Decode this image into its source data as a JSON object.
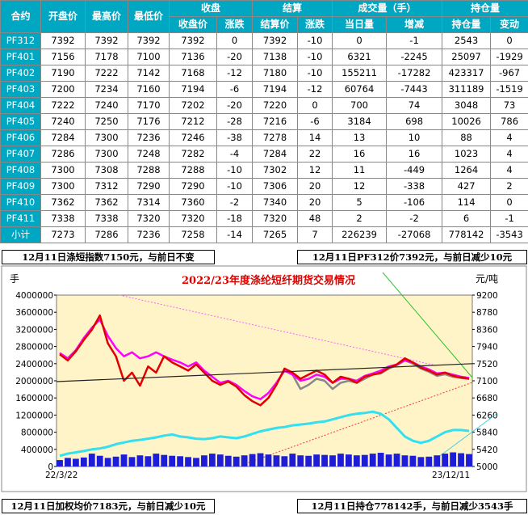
{
  "table": {
    "headers_top": [
      "合约",
      "开盘价",
      "最高价",
      "最低价",
      "收盘",
      "结算",
      "成交量（手）",
      "持仓量"
    ],
    "headers_sub": [
      "收盘价",
      "涨跌",
      "结算价",
      "涨跌",
      "当日量",
      "增减",
      "持仓量",
      "变动"
    ],
    "rows": [
      {
        "c": "PF312",
        "open": "7392",
        "high": "7392",
        "low": "7392",
        "close": "7392",
        "cchg": "0",
        "settle": "7392",
        "schg": "-10",
        "vol": "0",
        "vchg": "-1",
        "oi": "2543",
        "oichg": "0"
      },
      {
        "c": "PF401",
        "open": "7156",
        "high": "7178",
        "low": "7100",
        "close": "7136",
        "cchg": "-20",
        "settle": "7138",
        "schg": "-10",
        "vol": "6321",
        "vchg": "-2245",
        "oi": "25097",
        "oichg": "-1929"
      },
      {
        "c": "PF402",
        "open": "7190",
        "high": "7222",
        "low": "7142",
        "close": "7168",
        "cchg": "-12",
        "settle": "7180",
        "schg": "-10",
        "vol": "155211",
        "vchg": "-17282",
        "oi": "423317",
        "oichg": "-967"
      },
      {
        "c": "PF403",
        "open": "7200",
        "high": "7234",
        "low": "7160",
        "close": "7194",
        "cchg": "-6",
        "settle": "7194",
        "schg": "-12",
        "vol": "60764",
        "vchg": "-7443",
        "oi": "311189",
        "oichg": "-1519"
      },
      {
        "c": "PF404",
        "open": "7222",
        "high": "7240",
        "low": "7170",
        "close": "7202",
        "cchg": "-20",
        "settle": "7220",
        "schg": "0",
        "vol": "700",
        "vchg": "74",
        "oi": "3048",
        "oichg": "73"
      },
      {
        "c": "PF405",
        "open": "7240",
        "high": "7250",
        "low": "7176",
        "close": "7212",
        "cchg": "-28",
        "settle": "7216",
        "schg": "-6",
        "vol": "3184",
        "vchg": "698",
        "oi": "10026",
        "oichg": "786"
      },
      {
        "c": "PF406",
        "open": "7284",
        "high": "7300",
        "low": "7236",
        "close": "7246",
        "cchg": "-38",
        "settle": "7278",
        "schg": "14",
        "vol": "13",
        "vchg": "10",
        "oi": "88",
        "oichg": "4"
      },
      {
        "c": "PF407",
        "open": "7286",
        "high": "7300",
        "low": "7248",
        "close": "7282",
        "cchg": "-4",
        "settle": "7284",
        "schg": "22",
        "vol": "16",
        "vchg": "16",
        "oi": "1023",
        "oichg": "4"
      },
      {
        "c": "PF408",
        "open": "7300",
        "high": "7308",
        "low": "7288",
        "close": "7288",
        "cchg": "-10",
        "settle": "7302",
        "schg": "12",
        "vol": "11",
        "vchg": "-449",
        "oi": "1264",
        "oichg": "4"
      },
      {
        "c": "PF409",
        "open": "7300",
        "high": "7312",
        "low": "7290",
        "close": "7290",
        "cchg": "-10",
        "settle": "7306",
        "schg": "20",
        "vol": "12",
        "vchg": "-338",
        "oi": "427",
        "oichg": "2"
      },
      {
        "c": "PF410",
        "open": "7362",
        "high": "7362",
        "low": "7314",
        "close": "7360",
        "cchg": "-2",
        "settle": "7340",
        "schg": "20",
        "vol": "5",
        "vchg": "-106",
        "oi": "114",
        "oichg": "0"
      },
      {
        "c": "PF411",
        "open": "7338",
        "high": "7338",
        "low": "7320",
        "close": "7320",
        "cchg": "-18",
        "settle": "7320",
        "schg": "48",
        "vol": "2",
        "vchg": "-2",
        "oi": "6",
        "oichg": "-1"
      },
      {
        "c": "小计",
        "open": "7273",
        "high": "7286",
        "low": "7236",
        "close": "7258",
        "cchg": "-14",
        "settle": "7265",
        "schg": "7",
        "vol": "226239",
        "vchg": "-27068",
        "oi": "778142",
        "oichg": "-3543"
      }
    ]
  },
  "captions": {
    "top_left": "12月11日涤短指数7150元，与前日不变",
    "top_right": "12月11日PF312价7392元，与前日减少10元",
    "bottom_left": "12月11日加权均价7183元，与前日减少10元",
    "bottom_right": "12月11日持仓778142手，与前日减少3543手"
  },
  "chart_data": {
    "type": "line",
    "title": "2022/23年度涤纶短纤期货交易情况",
    "left_unit": "手",
    "right_unit": "元/吨",
    "left_ticks": [
      "4000000",
      "3600000",
      "3200000",
      "2800000",
      "2400000",
      "2000000",
      "1600000",
      "1200000",
      "800000",
      "400000",
      "0"
    ],
    "right_ticks": [
      "9200",
      "8780",
      "8360",
      "7940",
      "7520",
      "7100",
      "6680",
      "6260",
      "5840",
      "5420",
      "5000"
    ],
    "x_labels": [
      "22/3/22",
      "23/12/11"
    ],
    "left_range": [
      0,
      4000000
    ],
    "right_range": [
      5000,
      9200
    ],
    "colors": {
      "price_red": "#e00000",
      "price_magenta": "#ff00ff",
      "index_gray": "#888888",
      "oi_cyan": "#33e0f0",
      "volume_blue": "#1d1dd8",
      "trend": "#222222",
      "bg": "#fff4c8"
    },
    "series": [
      {
        "key": "futures_price",
        "axis": "right",
        "values": [
          7750,
          7600,
          7820,
          8100,
          8350,
          8700,
          8020,
          7700,
          7100,
          7300,
          6980,
          7450,
          7300,
          7700,
          7550,
          7450,
          7350,
          7500,
          7300,
          7100,
          7000,
          7080,
          6960,
          6750,
          6600,
          6500,
          6680,
          7000,
          7400,
          7300,
          7150,
          7250,
          7350,
          7250,
          7050,
          7200,
          7150,
          7050,
          7200,
          7250,
          7300,
          7420,
          7500,
          7650,
          7550,
          7420,
          7350,
          7250,
          7300,
          7220,
          7180,
          7150
        ]
      },
      {
        "key": "alt_price",
        "axis": "right",
        "values": [
          7780,
          7650,
          7850,
          8150,
          8400,
          8600,
          8200,
          7900,
          7700,
          7800,
          7650,
          7700,
          7800,
          7700,
          7620,
          7550,
          7450,
          7550,
          7350,
          7200,
          7050,
          7100,
          7000,
          6850,
          6720,
          6650,
          6800,
          7050,
          7350,
          7250,
          7100,
          7150,
          7250,
          7200,
          7050,
          7150,
          7150,
          7100,
          7220,
          7280,
          7350,
          7450,
          7500,
          7600,
          7550,
          7450,
          7380,
          7280,
          7300,
          7250,
          7200,
          7170
        ]
      },
      {
        "key": "staple_index",
        "axis": "right",
        "values": [
          null,
          null,
          null,
          null,
          null,
          null,
          null,
          null,
          null,
          null,
          null,
          null,
          null,
          null,
          null,
          null,
          null,
          null,
          null,
          null,
          null,
          null,
          null,
          null,
          null,
          null,
          null,
          null,
          null,
          7250,
          6900,
          7000,
          7150,
          7100,
          6900,
          7050,
          7100,
          7050,
          7150,
          7250,
          7280,
          7400,
          7480,
          7600,
          7520,
          7400,
          7320,
          7220,
          7260,
          7200,
          7170,
          7150
        ]
      },
      {
        "key": "open_interest",
        "axis": "left",
        "values": [
          250000,
          300000,
          330000,
          360000,
          400000,
          420000,
          460000,
          520000,
          560000,
          600000,
          620000,
          650000,
          680000,
          720000,
          750000,
          700000,
          680000,
          650000,
          640000,
          660000,
          700000,
          680000,
          660000,
          700000,
          760000,
          820000,
          860000,
          900000,
          920000,
          960000,
          980000,
          1000000,
          1030000,
          1050000,
          1100000,
          1150000,
          1200000,
          1230000,
          1250000,
          1280000,
          1230000,
          1100000,
          900000,
          700000,
          600000,
          550000,
          600000,
          700000,
          800000,
          850000,
          850000,
          830000
        ]
      },
      {
        "key": "daily_volume",
        "axis": "left",
        "values": [
          150000,
          200000,
          180000,
          210000,
          300000,
          250000,
          200000,
          230000,
          280000,
          220000,
          260000,
          240000,
          300000,
          270000,
          250000,
          240000,
          220000,
          200000,
          260000,
          300000,
          280000,
          250000,
          230000,
          260000,
          290000,
          310000,
          280000,
          260000,
          240000,
          300000,
          260000,
          250000,
          280000,
          270000,
          260000,
          300000,
          280000,
          260000,
          270000,
          300000,
          320000,
          280000,
          300000,
          260000,
          250000,
          220000,
          230000,
          260000,
          300000,
          330000,
          310000,
          290000
        ]
      }
    ]
  }
}
